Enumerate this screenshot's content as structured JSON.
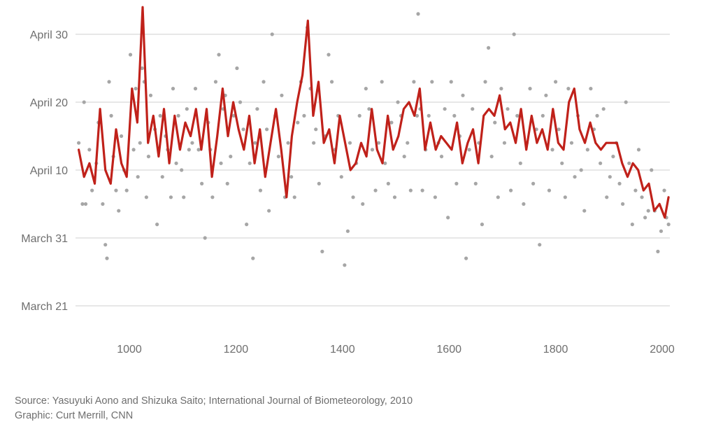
{
  "credits": {
    "source": "Source: Yasuyuki Aono and Shizuka Saito; International Journal of Biometeorology, 2010",
    "graphic": "Graphic: Curt Merrill, CNN"
  },
  "colors": {
    "points": "#a6a6a6",
    "trend": "#c0211a",
    "grid": "#cfcfcf",
    "text": "#6e6e6e"
  },
  "chart_data": {
    "type": "scatter",
    "title": "",
    "xlabel": "",
    "ylabel": "",
    "xlim": [
      900,
      2015
    ],
    "ylim": [
      76,
      124
    ],
    "grid": true,
    "x_ticks": [
      {
        "value": 1000,
        "label": "1000"
      },
      {
        "value": 1200,
        "label": "1200"
      },
      {
        "value": 1400,
        "label": "1400"
      },
      {
        "value": 1600,
        "label": "1600"
      },
      {
        "value": 1800,
        "label": "1800"
      },
      {
        "value": 2000,
        "label": "2000"
      }
    ],
    "y_ticks": [
      {
        "value": 80,
        "label": "March 21"
      },
      {
        "value": 90,
        "label": "March 31"
      },
      {
        "value": 100,
        "label": "April 10"
      },
      {
        "value": 110,
        "label": "April 20"
      },
      {
        "value": 120,
        "label": "April 30"
      }
    ],
    "series": [
      {
        "kind": "points",
        "x": [
          905,
          912,
          915,
          918,
          925,
          930,
          938,
          942,
          950,
          955,
          958,
          962,
          966,
          970,
          975,
          980,
          985,
          990,
          995,
          1002,
          1008,
          1012,
          1016,
          1020,
          1024,
          1028,
          1032,
          1036,
          1040,
          1048,
          1052,
          1058,
          1062,
          1068,
          1072,
          1078,
          1082,
          1088,
          1092,
          1098,
          1102,
          1108,
          1112,
          1118,
          1124,
          1130,
          1136,
          1142,
          1148,
          1152,
          1156,
          1162,
          1168,
          1172,
          1176,
          1180,
          1184,
          1190,
          1196,
          1202,
          1208,
          1214,
          1220,
          1226,
          1232,
          1236,
          1240,
          1246,
          1252,
          1258,
          1262,
          1268,
          1274,
          1280,
          1286,
          1292,
          1298,
          1304,
          1310,
          1316,
          1322,
          1328,
          1334,
          1340,
          1346,
          1350,
          1356,
          1362,
          1368,
          1374,
          1380,
          1386,
          1392,
          1398,
          1404,
          1410,
          1414,
          1420,
          1426,
          1432,
          1438,
          1444,
          1450,
          1456,
          1462,
          1468,
          1474,
          1480,
          1486,
          1492,
          1498,
          1504,
          1510,
          1516,
          1522,
          1528,
          1534,
          1540,
          1542,
          1546,
          1550,
          1556,
          1562,
          1568,
          1574,
          1580,
          1586,
          1592,
          1598,
          1604,
          1610,
          1614,
          1620,
          1626,
          1632,
          1638,
          1644,
          1650,
          1656,
          1662,
          1668,
          1674,
          1680,
          1686,
          1692,
          1698,
          1704,
          1710,
          1716,
          1722,
          1728,
          1734,
          1740,
          1746,
          1752,
          1758,
          1764,
          1770,
          1776,
          1782,
          1788,
          1794,
          1800,
          1806,
          1812,
          1818,
          1824,
          1830,
          1836,
          1842,
          1848,
          1854,
          1860,
          1866,
          1872,
          1878,
          1884,
          1890,
          1896,
          1902,
          1908,
          1914,
          1920,
          1926,
          1932,
          1938,
          1944,
          1950,
          1956,
          1962,
          1968,
          1974,
          1980,
          1986,
          1992,
          1998,
          2004,
          2008,
          2012
        ],
        "y": [
          104,
          95,
          110,
          95,
          103,
          97,
          101,
          107,
          95,
          89,
          87,
          113,
          108,
          102,
          97,
          94,
          105,
          100,
          97,
          117,
          103,
          112,
          99,
          104,
          115,
          113,
          96,
          102,
          111,
          106,
          92,
          108,
          99,
          105,
          103,
          96,
          112,
          101,
          108,
          100,
          96,
          109,
          103,
          104,
          112,
          103,
          98,
          90,
          107,
          103,
          96,
          113,
          117,
          101,
          109,
          111,
          98,
          102,
          108,
          115,
          110,
          106,
          92,
          101,
          87,
          104,
          109,
          97,
          113,
          106,
          94,
          120,
          108,
          102,
          111,
          96,
          104,
          99,
          96,
          107,
          113,
          108,
          121,
          112,
          104,
          106,
          98,
          88,
          105,
          117,
          113,
          103,
          108,
          99,
          86,
          91,
          104,
          96,
          101,
          108,
          95,
          112,
          109,
          103,
          97,
          104,
          113,
          101,
          98,
          107,
          96,
          110,
          108,
          102,
          104,
          97,
          113,
          108,
          123,
          109,
          97,
          103,
          108,
          113,
          96,
          104,
          102,
          109,
          93,
          113,
          108,
          98,
          105,
          111,
          87,
          103,
          109,
          98,
          104,
          92,
          113,
          118,
          102,
          107,
          96,
          112,
          104,
          109,
          97,
          120,
          108,
          101,
          95,
          104,
          112,
          98,
          106,
          89,
          108,
          111,
          97,
          103,
          113,
          106,
          101,
          96,
          112,
          104,
          99,
          108,
          100,
          94,
          103,
          112,
          106,
          108,
          101,
          109,
          96,
          99,
          102,
          104,
          98,
          95,
          110,
          101,
          92,
          97,
          103,
          96,
          93,
          94,
          100,
          94,
          88,
          91,
          97,
          93,
          92
        ],
        "color": "#a6a6a6"
      },
      {
        "kind": "line",
        "name": "",
        "x": [
          905,
          915,
          925,
          935,
          945,
          955,
          965,
          975,
          985,
          995,
          1005,
          1015,
          1025,
          1035,
          1045,
          1055,
          1065,
          1075,
          1085,
          1095,
          1105,
          1115,
          1125,
          1135,
          1145,
          1155,
          1165,
          1175,
          1185,
          1195,
          1205,
          1215,
          1225,
          1235,
          1245,
          1255,
          1265,
          1275,
          1285,
          1295,
          1305,
          1315,
          1325,
          1335,
          1345,
          1355,
          1365,
          1375,
          1385,
          1395,
          1405,
          1415,
          1425,
          1435,
          1445,
          1455,
          1465,
          1475,
          1485,
          1495,
          1505,
          1515,
          1525,
          1535,
          1545,
          1555,
          1565,
          1575,
          1585,
          1595,
          1605,
          1615,
          1625,
          1635,
          1645,
          1655,
          1665,
          1675,
          1685,
          1695,
          1705,
          1715,
          1725,
          1735,
          1745,
          1755,
          1765,
          1775,
          1785,
          1795,
          1805,
          1815,
          1825,
          1835,
          1845,
          1855,
          1865,
          1875,
          1885,
          1895,
          1905,
          1915,
          1925,
          1935,
          1945,
          1955,
          1965,
          1975,
          1985,
          1995,
          2005,
          2012
        ],
        "y": [
          103,
          99,
          101,
          98,
          109,
          100,
          98,
          106,
          101,
          99,
          112,
          107,
          124,
          104,
          108,
          102,
          109,
          101,
          108,
          103,
          107,
          105,
          109,
          103,
          109,
          99,
          105,
          112,
          105,
          110,
          106,
          103,
          108,
          101,
          106,
          99,
          104,
          109,
          103,
          96,
          105,
          110,
          114,
          122,
          108,
          113,
          104,
          106,
          101,
          108,
          104,
          100,
          101,
          104,
          102,
          109,
          103,
          101,
          108,
          103,
          105,
          109,
          110,
          108,
          112,
          103,
          107,
          103,
          105,
          104,
          103,
          107,
          101,
          104,
          106,
          101,
          108,
          109,
          108,
          111,
          106,
          107,
          104,
          109,
          103,
          108,
          104,
          106,
          103,
          109,
          104,
          103,
          110,
          112,
          106,
          104,
          107,
          104,
          103,
          104,
          104,
          104,
          101,
          99,
          101,
          100,
          97,
          98,
          94,
          95,
          93,
          96
        ],
        "color": "#c0211a"
      }
    ]
  }
}
